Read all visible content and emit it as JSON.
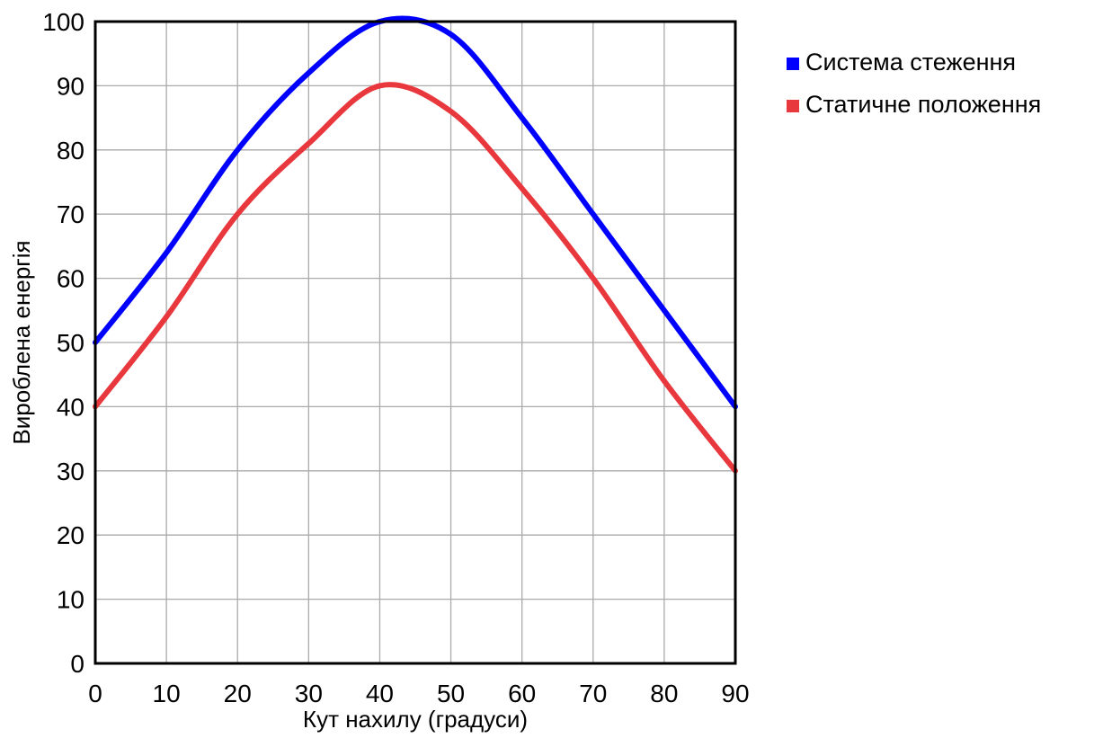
{
  "chart_data": {
    "type": "line",
    "title": "",
    "xlabel": "Кут нахилу (градуси)",
    "ylabel": "Вироблена енергія",
    "xlim": [
      0,
      90
    ],
    "ylim": [
      0,
      100
    ],
    "x_ticks": [
      "0",
      "10",
      "20",
      "30",
      "40",
      "50",
      "60",
      "70",
      "80",
      "90"
    ],
    "y_ticks": [
      "0",
      "10",
      "20",
      "30",
      "40",
      "50",
      "60",
      "70",
      "80",
      "90",
      "100"
    ],
    "grid": true,
    "legend_position": "right-top",
    "series": [
      {
        "name": "Система стеження",
        "color": "#0000ff",
        "x": [
          0,
          10,
          20,
          30,
          40,
          50,
          60,
          70,
          80,
          90
        ],
        "values": [
          50,
          64,
          80,
          92,
          100,
          98,
          85,
          70,
          55,
          40
        ]
      },
      {
        "name": "Статичне положення",
        "color": "#e8383d",
        "x": [
          0,
          10,
          20,
          30,
          40,
          50,
          60,
          70,
          80,
          90
        ],
        "values": [
          40,
          54,
          70,
          81,
          90,
          86,
          74,
          60,
          44,
          30
        ]
      }
    ]
  }
}
